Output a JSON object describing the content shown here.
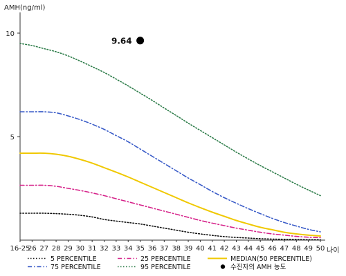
{
  "chart_data": {
    "type": "line",
    "title": "",
    "ylabel": "AMH(ng/ml)",
    "xlabel": "나이",
    "ylim": [
      0,
      11
    ],
    "y_ticks": [
      5,
      10
    ],
    "x": [
      "16-25",
      "26",
      "27",
      "28",
      "29",
      "30",
      "31",
      "32",
      "33",
      "34",
      "35",
      "36",
      "37",
      "38",
      "39",
      "40",
      "41",
      "42",
      "43",
      "44",
      "45",
      "46",
      "47",
      "48",
      "49",
      "50"
    ],
    "series": [
      {
        "name": "5 PERCENTILE",
        "color": "#111111",
        "style": "dotted",
        "values": [
          1.3,
          1.3,
          1.3,
          1.28,
          1.25,
          1.2,
          1.12,
          1.0,
          0.92,
          0.85,
          0.78,
          0.68,
          0.58,
          0.48,
          0.38,
          0.3,
          0.23,
          0.17,
          0.13,
          0.1,
          0.07,
          0.05,
          0.04,
          0.03,
          0.02,
          0.02
        ]
      },
      {
        "name": "25 PERCENTILE",
        "color": "#d6238a",
        "style": "dashdot",
        "values": [
          2.65,
          2.65,
          2.65,
          2.6,
          2.5,
          2.4,
          2.28,
          2.15,
          2.0,
          1.85,
          1.7,
          1.55,
          1.4,
          1.25,
          1.1,
          0.95,
          0.82,
          0.7,
          0.58,
          0.48,
          0.38,
          0.3,
          0.24,
          0.18,
          0.14,
          0.12
        ]
      },
      {
        "name": "MEDIAN(50 PERCENTILE)",
        "color": "#f0c800",
        "style": "solid",
        "values": [
          4.2,
          4.2,
          4.2,
          4.15,
          4.05,
          3.9,
          3.72,
          3.5,
          3.28,
          3.05,
          2.8,
          2.55,
          2.3,
          2.05,
          1.8,
          1.57,
          1.35,
          1.15,
          0.95,
          0.78,
          0.62,
          0.5,
          0.38,
          0.3,
          0.24,
          0.2
        ]
      },
      {
        "name": "75 PERCENTILE",
        "color": "#3a5cc8",
        "style": "dashdot",
        "values": [
          6.2,
          6.2,
          6.2,
          6.15,
          6.0,
          5.82,
          5.6,
          5.35,
          5.05,
          4.75,
          4.4,
          4.05,
          3.7,
          3.35,
          3.0,
          2.68,
          2.35,
          2.05,
          1.78,
          1.52,
          1.28,
          1.05,
          0.85,
          0.68,
          0.52,
          0.4
        ]
      },
      {
        "name": "95 PERCENTILE",
        "color": "#2e7d4a",
        "style": "dotted",
        "values": [
          9.5,
          9.4,
          9.25,
          9.1,
          8.9,
          8.65,
          8.38,
          8.1,
          7.78,
          7.45,
          7.1,
          6.75,
          6.38,
          6.02,
          5.65,
          5.3,
          4.95,
          4.6,
          4.25,
          3.92,
          3.6,
          3.3,
          3.0,
          2.7,
          2.42,
          2.15
        ]
      }
    ],
    "marker": {
      "name": "수진자의 AMH 농도",
      "x": "35",
      "y": 9.64,
      "label": "9.64"
    },
    "legend": {
      "placement": "bottom",
      "entries": [
        "5 PERCENTILE",
        "25 PERCENTILE",
        "MEDIAN(50 PERCENTILE)",
        "75 PERCENTILE",
        "95 PERCENTILE",
        "수진자의 AMH 농도"
      ]
    }
  }
}
